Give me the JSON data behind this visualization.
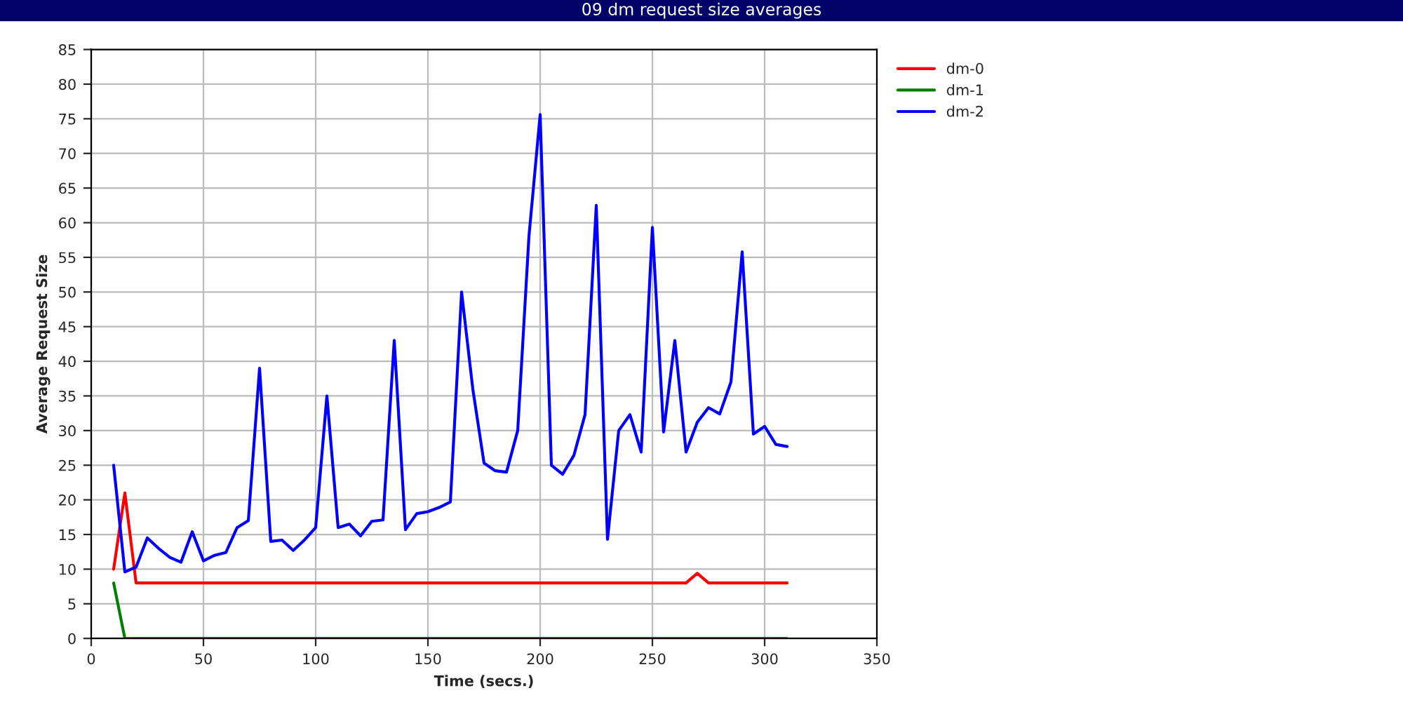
{
  "chart_data": {
    "type": "line",
    "title": "09 dm request size averages",
    "xlabel": "Time (secs.)",
    "ylabel": "Average Request Size",
    "x": [
      10,
      15,
      20,
      25,
      30,
      35,
      40,
      45,
      50,
      55,
      60,
      65,
      70,
      75,
      80,
      85,
      90,
      95,
      100,
      105,
      110,
      115,
      120,
      125,
      130,
      135,
      140,
      145,
      150,
      155,
      160,
      165,
      170,
      175,
      180,
      185,
      190,
      195,
      200,
      205,
      210,
      215,
      220,
      225,
      230,
      235,
      240,
      245,
      250,
      255,
      260,
      265,
      270,
      275,
      280,
      285,
      290,
      295,
      300,
      305,
      310
    ],
    "series": [
      {
        "name": "dm-0",
        "color": "#ff0000",
        "values": [
          10,
          21,
          8,
          8,
          8,
          8,
          8,
          8,
          8,
          8,
          8,
          8,
          8,
          8,
          8,
          8,
          8,
          8,
          8,
          8,
          8,
          8,
          8,
          8,
          8,
          8,
          8,
          8,
          8,
          8,
          8,
          8,
          8,
          8,
          8,
          8,
          8,
          8,
          8,
          8,
          8,
          8,
          8,
          8,
          8,
          8,
          8,
          8,
          8,
          8,
          8,
          8,
          9.4,
          8,
          8,
          8,
          8,
          8,
          8,
          8,
          8
        ]
      },
      {
        "name": "dm-1",
        "color": "#008000",
        "values": [
          8,
          0,
          0,
          0,
          0,
          0,
          0,
          0,
          0,
          0,
          0,
          0,
          0,
          0,
          0,
          0,
          0,
          0,
          0,
          0,
          0,
          0,
          0,
          0,
          0,
          0,
          0,
          0,
          0,
          0,
          0,
          0,
          0,
          0,
          0,
          0,
          0,
          0,
          0,
          0,
          0,
          0,
          0,
          0,
          0,
          0,
          0,
          0,
          0,
          0,
          0,
          0,
          0,
          0,
          0,
          0,
          0,
          0,
          0,
          0,
          0
        ]
      },
      {
        "name": "dm-2",
        "color": "#0000ff",
        "values": [
          25,
          9.6,
          10.3,
          14.5,
          13,
          11.7,
          11,
          15.4,
          11.2,
          12,
          12.4,
          16,
          17,
          39,
          14,
          14.2,
          12.7,
          14.2,
          16,
          35,
          16,
          16.5,
          14.8,
          16.9,
          17.1,
          43,
          15.7,
          18,
          18.3,
          18.9,
          19.7,
          50,
          36,
          25.3,
          24.2,
          24,
          30,
          58,
          75.6,
          25,
          23.7,
          26.4,
          32.3,
          62.5,
          14.3,
          30,
          32.3,
          26.9,
          59.3,
          29.8,
          43,
          26.9,
          31.2,
          33.3,
          32.4,
          37,
          55.8,
          29.5,
          30.6,
          28,
          27.7
        ]
      }
    ],
    "xlim": [
      0,
      350
    ],
    "xticks": [
      0,
      50,
      100,
      150,
      200,
      250,
      300,
      350
    ],
    "ylim": [
      0,
      85
    ],
    "yticks": [
      0,
      5,
      10,
      15,
      20,
      25,
      30,
      35,
      40,
      45,
      50,
      55,
      60,
      65,
      70,
      75,
      80,
      85
    ],
    "grid": true,
    "legend": "top right",
    "marker": "none",
    "line_style": "solid"
  }
}
